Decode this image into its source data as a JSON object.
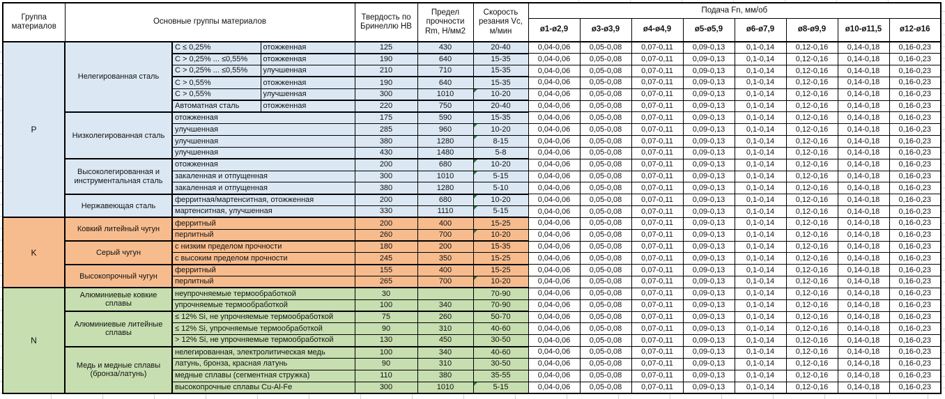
{
  "header": {
    "col_group": "Группа материалов",
    "col_materials": "Основные группы материалов",
    "col_hardness": "Твердость по Бринеллю HB",
    "col_strength": "Предел прочности Rm, Н/мм2",
    "col_speed": "Скорость резания Vc, м/мин",
    "feed_title": "Подача Fn, мм/об",
    "feed_cols": [
      "ø1-ø2,9",
      "ø3-ø3,9",
      "ø4-ø4,9",
      "ø5-ø5,9",
      "ø6-ø7,9",
      "ø8-ø9,9",
      "ø10-ø11,5",
      "ø12-ø16"
    ]
  },
  "feed_values": [
    "0,04-0,06",
    "0,05-0,08",
    "0,07-0,11",
    "0,09-0,13",
    "0,1-0,14",
    "0,12-0,16",
    "0,14-0,18",
    "0,16-0,23"
  ],
  "colors": {
    "p_fill": "#DBE8F4",
    "k_fill": "#F7BC8E",
    "n_fill": "#C7DEB0",
    "marker_green": "#1E7B34",
    "border": "#000000"
  },
  "groups": [
    {
      "code": "P",
      "fill": "p_fill",
      "families": [
        {
          "name": "Нелегированная сталь",
          "rows": [
            {
              "sub": "C ≤ 0,25%",
              "state": "отожженная",
              "hb": "125",
              "rm": "430",
              "vc": "20-40",
              "m": false,
              "tb": true
            },
            {
              "sub": "C > 0,25% ... ≤0,55%",
              "state": "отожженная",
              "hb": "190",
              "rm": "640",
              "vc": "15-35",
              "m": false,
              "tb": false
            },
            {
              "sub": "C > 0,25% ... ≤0,55%",
              "state": "улучшенная",
              "hb": "210",
              "rm": "710",
              "vc": "15-35",
              "m": false,
              "tb": true
            },
            {
              "sub": "C > 0,55%",
              "state": "отожженная",
              "hb": "190",
              "rm": "640",
              "vc": "15-35",
              "m": false,
              "tb": false
            },
            {
              "sub": "C > 0,55%",
              "state": "улучшенная",
              "hb": "300",
              "rm": "1010",
              "vc": "10-20",
              "m": true,
              "tb": true
            },
            {
              "sub": "Автоматная сталь",
              "state": "отожженная",
              "hb": "220",
              "rm": "750",
              "vc": "20-40",
              "m": false,
              "tb": true
            }
          ]
        },
        {
          "name": "Низколегированная сталь",
          "rows": [
            {
              "sub": "отожженная",
              "hb": "175",
              "rm": "590",
              "vc": "15-35",
              "m": false,
              "tb": false
            },
            {
              "sub": "улучшенная",
              "hb": "285",
              "rm": "960",
              "vc": "10-20",
              "m": true,
              "tb": false
            },
            {
              "sub": "улучшенная",
              "hb": "380",
              "rm": "1280",
              "vc": "8-15",
              "m": true,
              "tb": false
            },
            {
              "sub": "улучшенная",
              "hb": "430",
              "rm": "1480",
              "vc": "5-8",
              "m": false,
              "tb": true
            }
          ]
        },
        {
          "name": "Высоколегированная и инструментальная сталь",
          "rows": [
            {
              "sub": "отожженная",
              "hb": "200",
              "rm": "680",
              "vc": "10-20",
              "m": true,
              "tb": false
            },
            {
              "sub": "закаленная и отпущенная",
              "hb": "300",
              "rm": "1010",
              "vc": "5-15",
              "m": true,
              "tb": false
            },
            {
              "sub": "закаленная и отпущенная",
              "hb": "380",
              "rm": "1280",
              "vc": "5-10",
              "m": false,
              "tb": true
            }
          ]
        },
        {
          "name": "Нержавеющая сталь",
          "rows": [
            {
              "sub": "ферритная/мартенситная, отожженная",
              "hb": "200",
              "rm": "680",
              "vc": "10-20",
              "m": true,
              "tb": false
            },
            {
              "sub": "мартенситная, улучшенная",
              "hb": "330",
              "rm": "1110",
              "vc": "5-15",
              "m": true,
              "tb": true
            }
          ]
        }
      ]
    },
    {
      "code": "K",
      "fill": "k_fill",
      "families": [
        {
          "name": "Ковкий литейный чугун",
          "rows": [
            {
              "sub": "ферритный",
              "hb": "200",
              "rm": "400",
              "vc": "15-25",
              "m": false,
              "tb": false
            },
            {
              "sub": "перлитный",
              "hb": "260",
              "rm": "700",
              "vc": "10-20",
              "m": true,
              "tb": true
            }
          ]
        },
        {
          "name": "Серый чугун",
          "rows": [
            {
              "sub": "с низким пределом прочности",
              "hb": "180",
              "rm": "200",
              "vc": "15-35",
              "m": false,
              "tb": false
            },
            {
              "sub": "с высоким пределом прочности",
              "hb": "245",
              "rm": "350",
              "vc": "15-25",
              "m": false,
              "tb": true
            }
          ]
        },
        {
          "name": "Высокопрочный чугун",
          "rows": [
            {
              "sub": "ферритный",
              "hb": "155",
              "rm": "400",
              "vc": "15-25",
              "m": false,
              "tb": false
            },
            {
              "sub": "перлитный",
              "hb": "265",
              "rm": "700",
              "vc": "10-20",
              "m": true,
              "tb": true
            }
          ]
        }
      ]
    },
    {
      "code": "N",
      "fill": "n_fill",
      "families": [
        {
          "name": "Алюминиевые ковкие сплавы",
          "rows": [
            {
              "sub": "неупрочняемые термообработкой",
              "hb": "30",
              "rm": "",
              "vc": "70-90",
              "m": false,
              "tb": false
            },
            {
              "sub": "упрочняемые термообработкой",
              "hb": "100",
              "rm": "340",
              "vc": "70-90",
              "m": false,
              "tb": true
            }
          ]
        },
        {
          "name": "Алюминиевые литейные сплавы",
          "rows": [
            {
              "sub": "≤ 12% Si, не упрочняемые термообработкой",
              "hb": "75",
              "rm": "260",
              "vc": "50-70",
              "m": false,
              "tb": false
            },
            {
              "sub": "≤ 12% Si, упрочняемые термообработкой",
              "hb": "90",
              "rm": "310",
              "vc": "40-60",
              "m": false,
              "tb": false
            },
            {
              "sub": "> 12% Si, не упрочняемые термообработкой",
              "hb": "130",
              "rm": "450",
              "vc": "30-50",
              "m": false,
              "tb": true
            }
          ]
        },
        {
          "name": "Медь и медные сплавы (бронза/латунь)",
          "rows": [
            {
              "sub": "нелегированная, электролитическая медь",
              "hb": "100",
              "rm": "340",
              "vc": "40-60",
              "m": false,
              "tb": false
            },
            {
              "sub": "латунь, бронза, красная латунь",
              "hb": "90",
              "rm": "310",
              "vc": "30-50",
              "m": false,
              "tb": false
            },
            {
              "sub": "медные сплавы (сегментная стружка)",
              "hb": "110",
              "rm": "380",
              "vc": "35-55",
              "m": false,
              "tb": false
            },
            {
              "sub": "высокопрочные сплавы Cu-Al-Fe",
              "hb": "300",
              "rm": "1010",
              "vc": "5-15",
              "m": true,
              "tb": true
            }
          ]
        }
      ]
    }
  ]
}
